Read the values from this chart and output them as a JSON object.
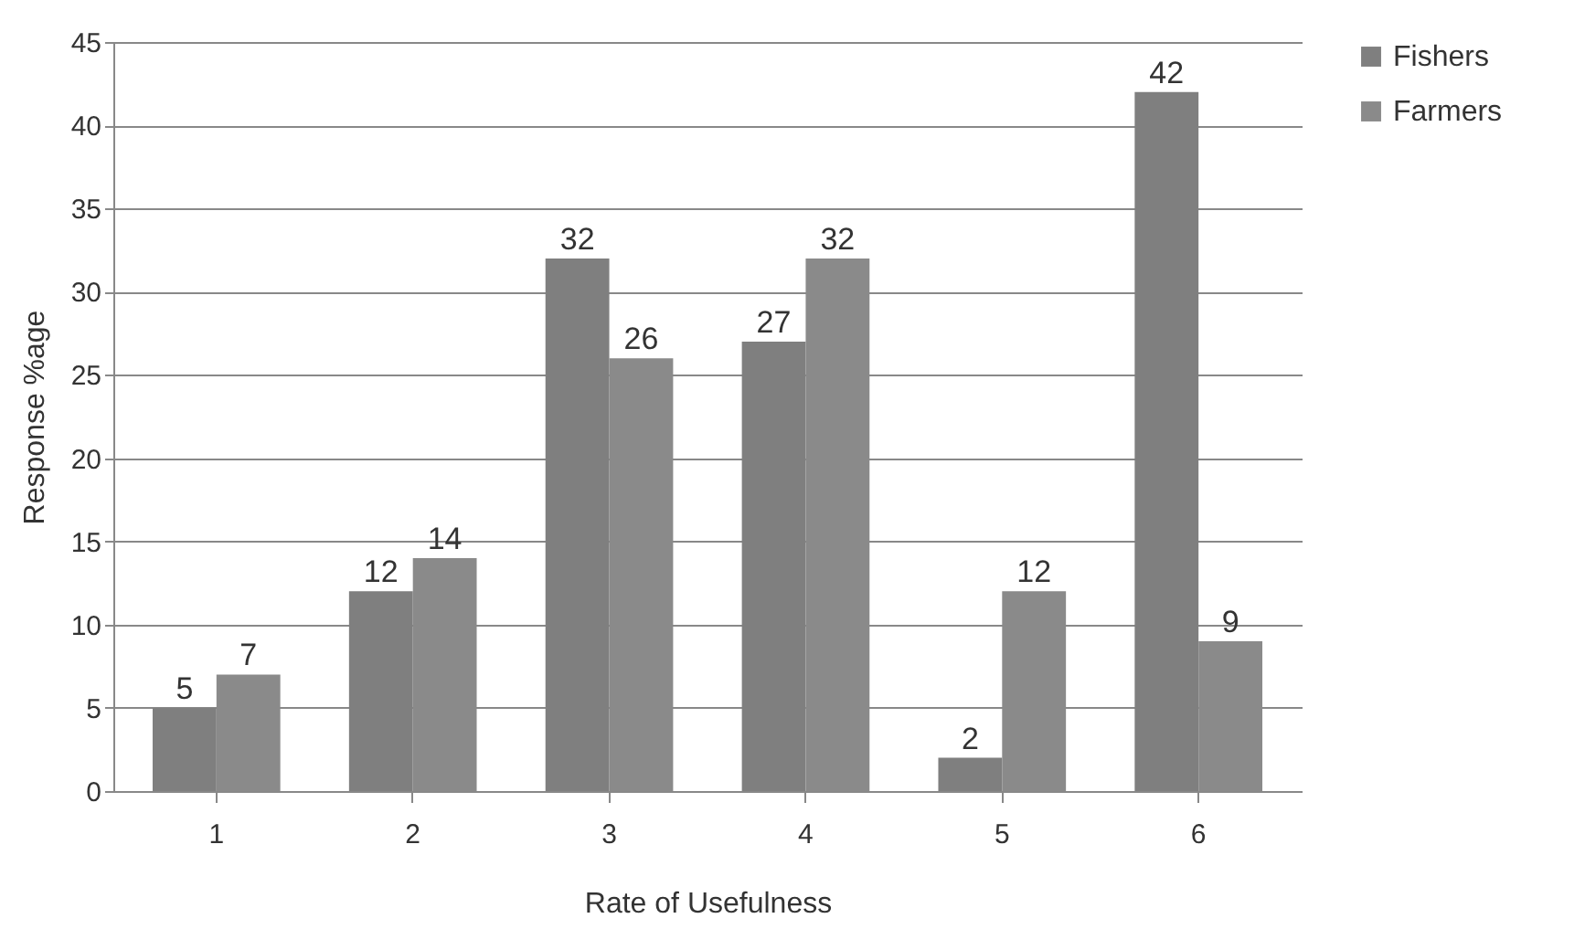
{
  "chart_data": {
    "type": "bar",
    "xlabel": "Rate of Usefulness",
    "ylabel": "Response %age",
    "categories": [
      "1",
      "2",
      "3",
      "4",
      "5",
      "6"
    ],
    "series": [
      {
        "name": "Fishers",
        "color": "#7f7f7f",
        "values": [
          5,
          12,
          32,
          27,
          2,
          42
        ]
      },
      {
        "name": "Farmers",
        "color": "#8a8a8a",
        "values": [
          7,
          14,
          26,
          32,
          12,
          9
        ]
      }
    ],
    "ylim": [
      0,
      45
    ],
    "yticks": [
      0,
      5,
      10,
      15,
      20,
      25,
      30,
      35,
      40,
      45
    ],
    "grid": "y",
    "legend": "right",
    "data_labels": true
  }
}
